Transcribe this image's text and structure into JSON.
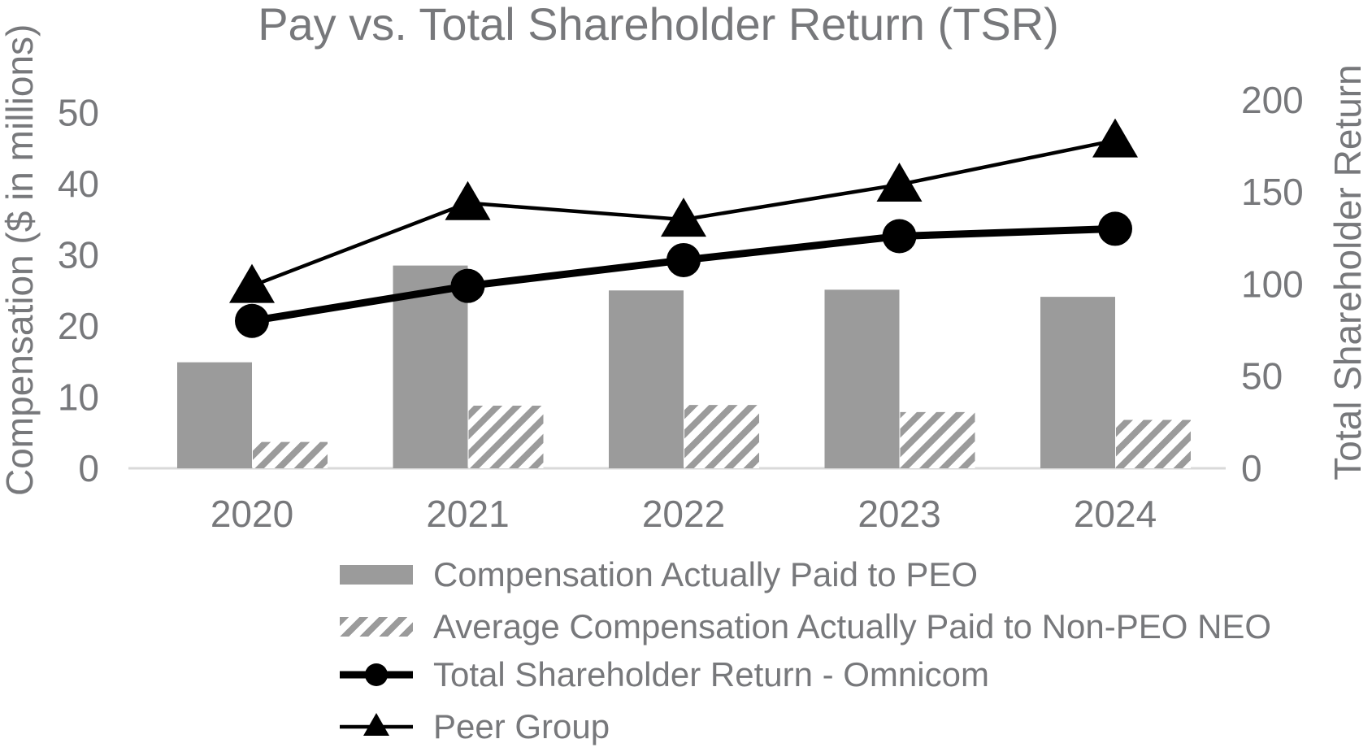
{
  "title": "Pay vs. Total Shareholder Return (TSR)",
  "colors": {
    "bar_gray": "#9b9b9b",
    "text_gray": "#77787b",
    "line_black": "#000000",
    "axis_line_gray": "#d9d9d9",
    "background": "#ffffff"
  },
  "chart_data": {
    "type": "bar",
    "subtype": "combo-bar-line-dual-axis",
    "title": "Pay vs. Total Shareholder Return (TSR)",
    "categories": [
      "2020",
      "2021",
      "2022",
      "2023",
      "2024"
    ],
    "series": [
      {
        "name": "Compensation Actually Paid to PEO",
        "type": "bar",
        "axis": "left",
        "style": "solid-gray",
        "values": [
          14.9,
          28.5,
          25.0,
          25.1,
          24.1
        ]
      },
      {
        "name": "Average Compensation Actually Paid to Non-PEO NEO",
        "type": "bar",
        "axis": "left",
        "style": "hatched-diagonal",
        "values": [
          3.7,
          8.8,
          8.9,
          7.9,
          6.8
        ]
      },
      {
        "name": "Total Shareholder Return - Omnicom",
        "type": "line",
        "axis": "right",
        "marker": "circle",
        "line_weight": "thick",
        "values": [
          80,
          99,
          113,
          126,
          130
        ]
      },
      {
        "name": "Peer Group",
        "type": "line",
        "axis": "right",
        "marker": "triangle",
        "line_weight": "thin",
        "values": [
          99,
          144,
          135,
          154,
          178
        ]
      }
    ],
    "y_left": {
      "label": "Compensation ($ in millions)",
      "ticks": [
        0,
        10,
        20,
        30,
        40,
        50
      ],
      "range": [
        0,
        50
      ]
    },
    "y_right": {
      "label": "Total Shareholder Return",
      "ticks": [
        0,
        50,
        100,
        150,
        200
      ],
      "range": [
        0,
        200
      ]
    },
    "grid": false,
    "legend_position": "bottom-left"
  }
}
